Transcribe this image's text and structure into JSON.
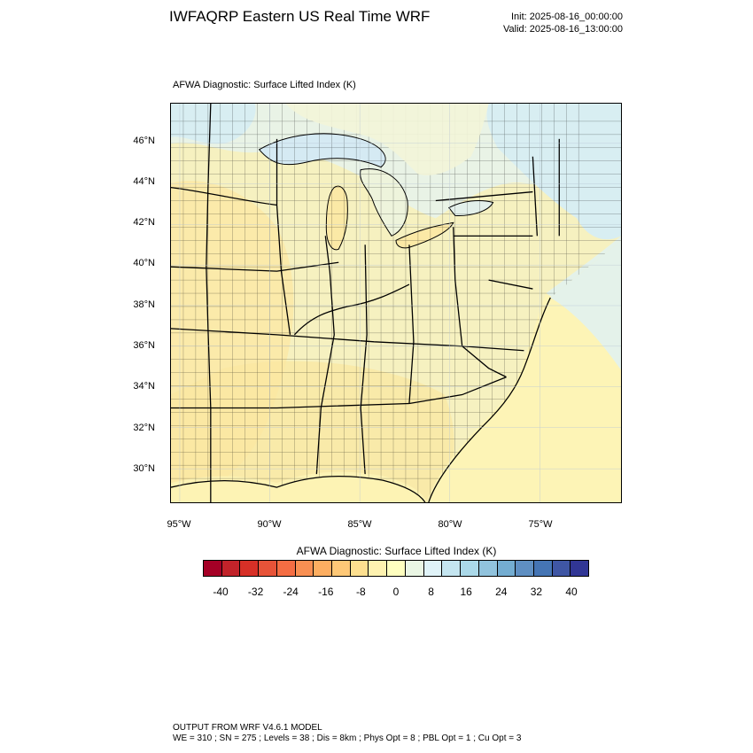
{
  "header": {
    "title": "IWFAQRP Eastern US Real Time WRF",
    "init": "Init: 2025-08-16_00:00:00",
    "valid": "Valid: 2025-08-16_13:00:00"
  },
  "map": {
    "field_label": "AFWA Diagnostic: Surface Lifted Index   (K)",
    "lat_labels": [
      "46°N",
      "44°N",
      "42°N",
      "40°N",
      "38°N",
      "36°N",
      "34°N",
      "32°N",
      "30°N"
    ],
    "lon_labels": [
      "95°W",
      "90°W",
      "85°W",
      "80°W",
      "75°W"
    ],
    "colors": {
      "land_warm": "#fbe9a6",
      "land_mid": "#f6f1c0",
      "ocean_warm": "#fdf4b6",
      "cool_cyan": "#d8eef2",
      "cool_blue": "#cfe5f0",
      "border": "#000000"
    }
  },
  "colorbar": {
    "title": "AFWA Diagnostic: Surface Lifted Index  (K)",
    "colors": [
      "#a50026",
      "#c1232a",
      "#d73027",
      "#e75338",
      "#f46d43",
      "#f88f52",
      "#fdae61",
      "#fec877",
      "#fee090",
      "#fef2b0",
      "#ffffbf",
      "#eaf6e4",
      "#e0f3f8",
      "#c4e5f0",
      "#abd9e9",
      "#91c3dd",
      "#74add1",
      "#5f8fc2",
      "#4575b4",
      "#3f56a4",
      "#313695"
    ],
    "tick_labels": [
      "-40",
      "-32",
      "-24",
      "-16",
      "-8",
      "0",
      "8",
      "16",
      "24",
      "32",
      "40"
    ]
  },
  "footer": {
    "line1": "OUTPUT FROM WRF V4.6.1 MODEL",
    "line2": "WE = 310 ; SN = 275 ; Levels = 38 ; Dis = 8km ; Phys Opt = 8 ; PBL Opt = 1 ; Cu Opt = 3"
  }
}
